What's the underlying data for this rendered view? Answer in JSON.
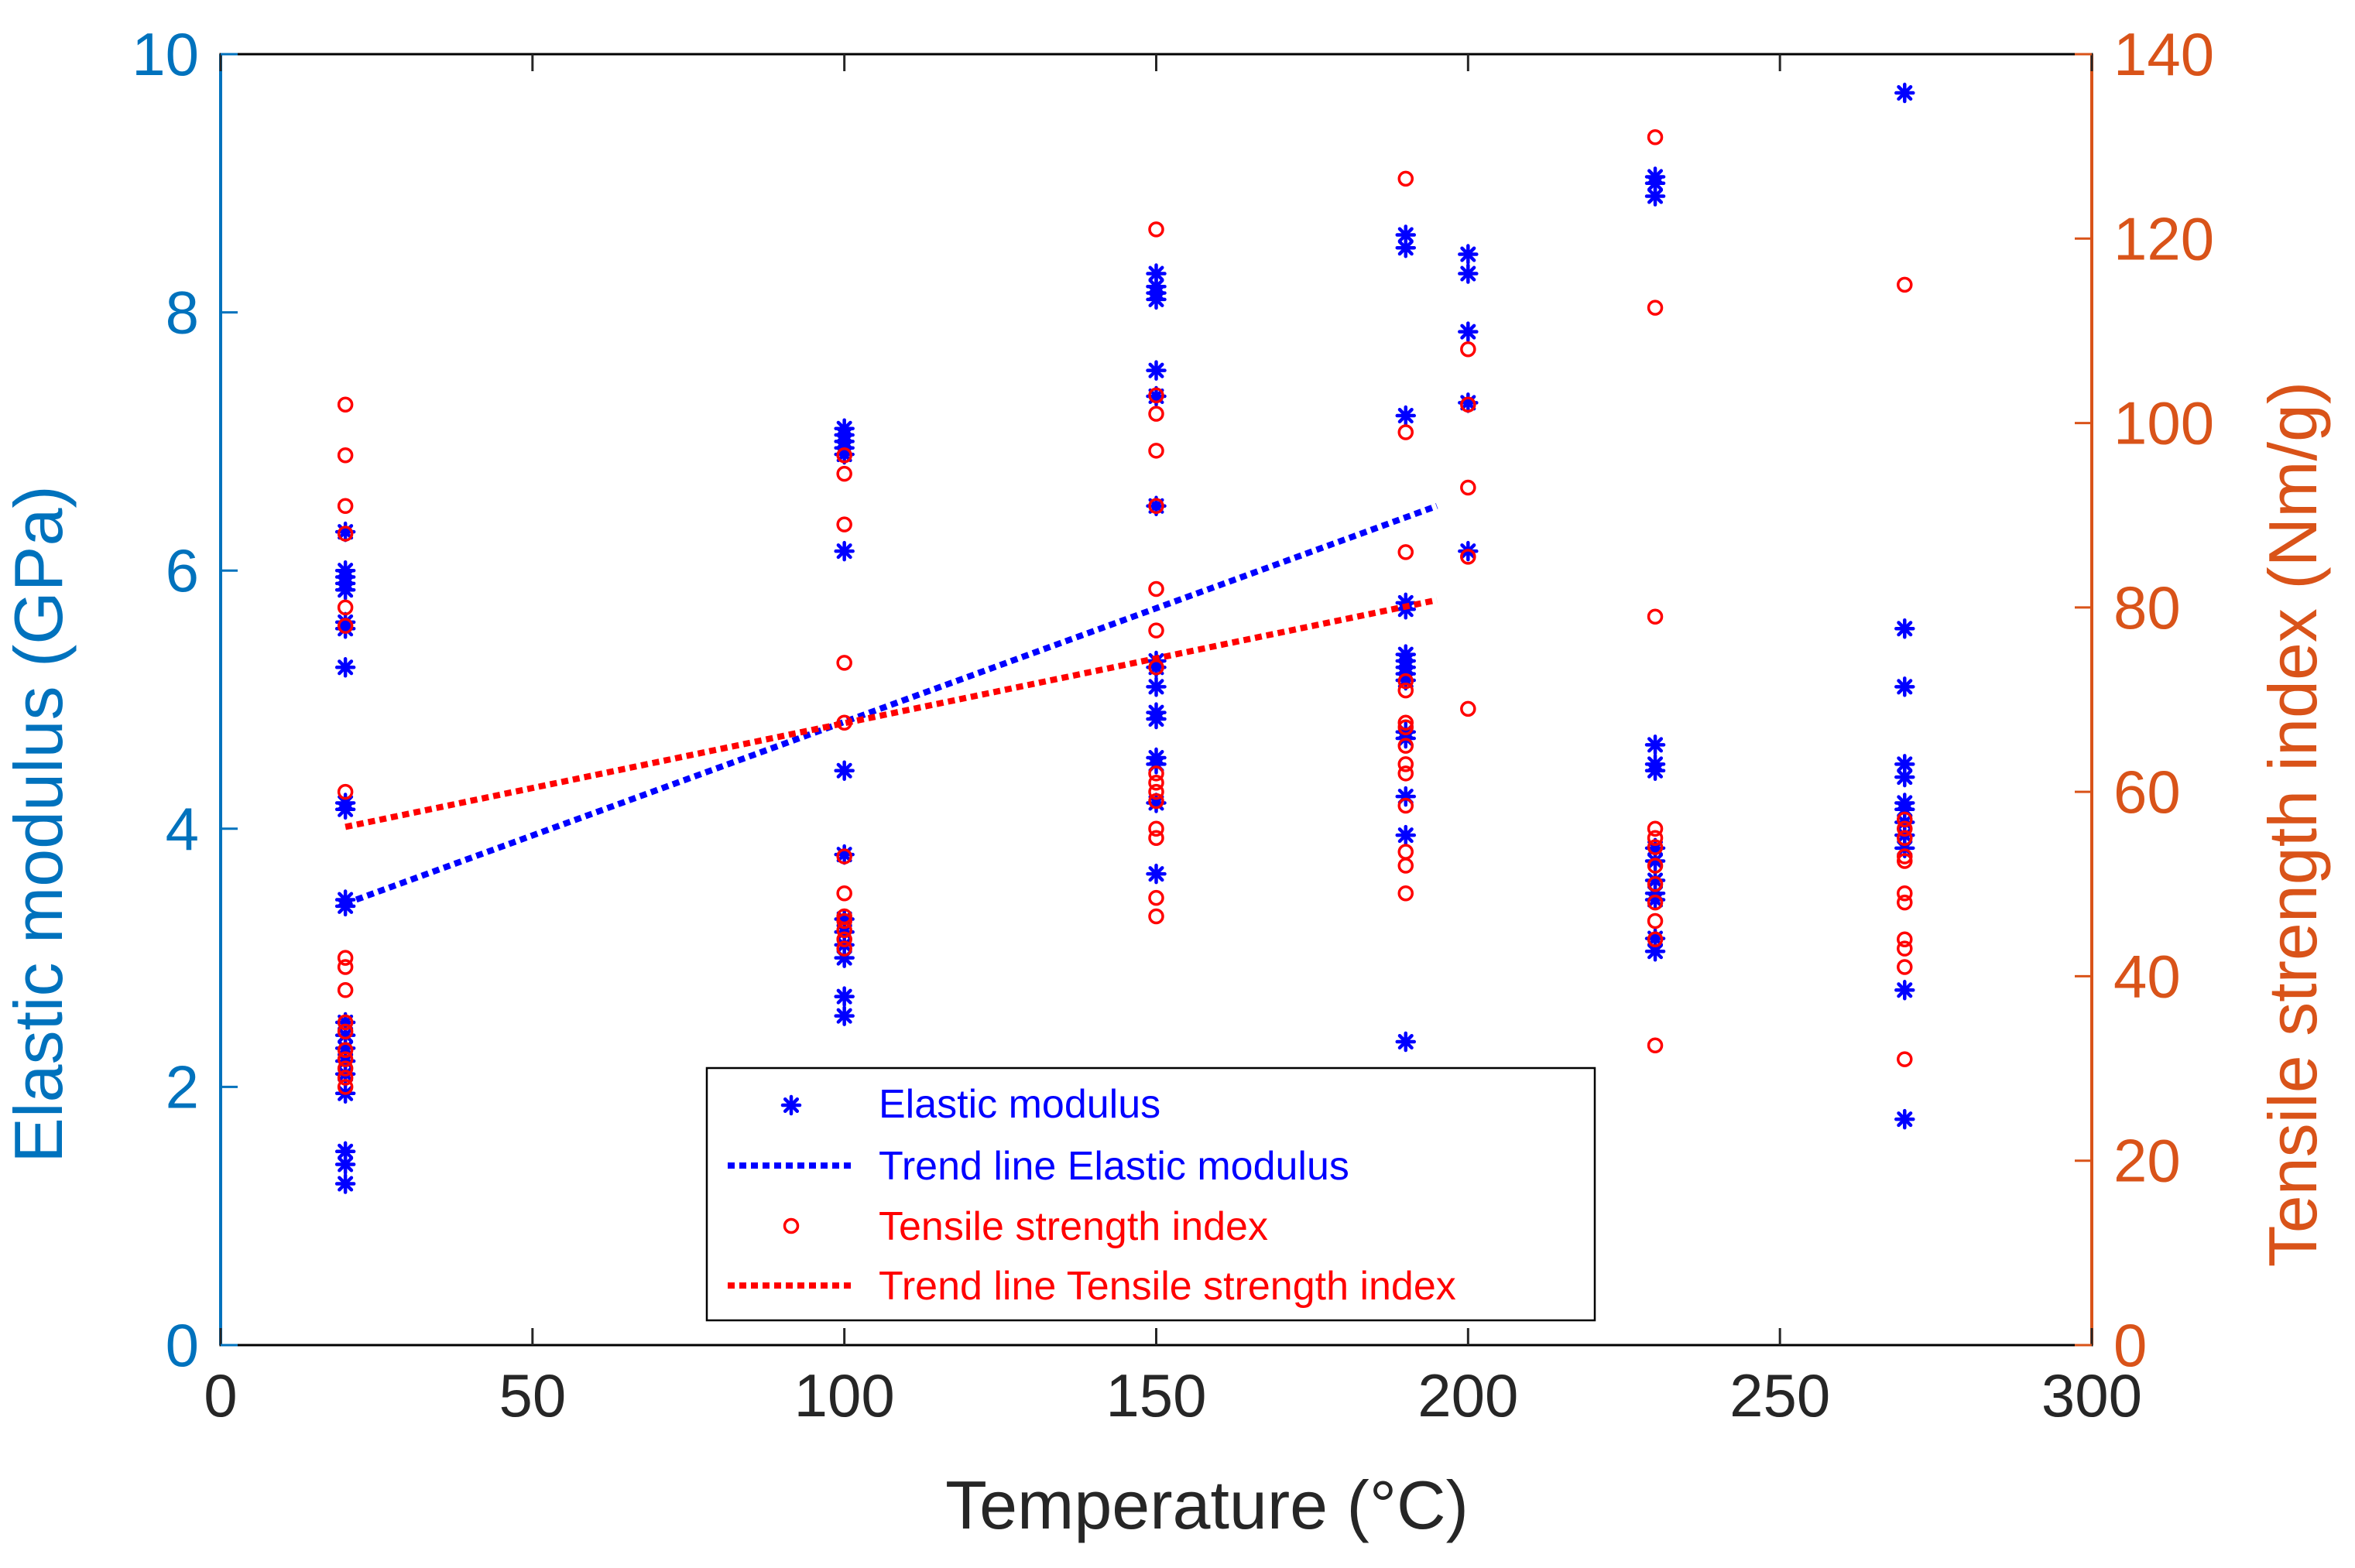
{
  "chart_data": {
    "type": "scatter",
    "title": "",
    "xlabel": "Temperature (°C)",
    "ylabel_left": "Elastic modulus (GPa)",
    "ylabel_right": "Tensile strength index (Nm/g)",
    "xlim": [
      0,
      300
    ],
    "ylim_left": [
      0,
      10
    ],
    "ylim_right": [
      0,
      140
    ],
    "x_ticks": [
      0,
      50,
      100,
      150,
      200,
      250,
      300
    ],
    "y_left_ticks": [
      0,
      2,
      4,
      6,
      8,
      10
    ],
    "y_right_ticks": [
      0,
      20,
      40,
      60,
      80,
      100,
      120,
      140
    ],
    "grid": false,
    "legend_position": "bottom-center",
    "colors": {
      "left_axis": "#0072BD",
      "right_axis": "#D95319",
      "elastic": "#0000FF",
      "tensile": "#FF0000",
      "frame": "#000000"
    },
    "series": [
      {
        "name": "Elastic modulus",
        "axis": "left",
        "marker": "star",
        "points": [
          [
            20,
            6.3
          ],
          [
            20,
            6.0
          ],
          [
            20,
            5.95
          ],
          [
            20,
            5.9
          ],
          [
            20,
            5.85
          ],
          [
            20,
            5.6
          ],
          [
            20,
            5.55
          ],
          [
            20,
            5.25
          ],
          [
            20,
            4.2
          ],
          [
            20,
            4.15
          ],
          [
            20,
            3.45
          ],
          [
            20,
            3.4
          ],
          [
            20,
            2.5
          ],
          [
            20,
            2.4
          ],
          [
            20,
            2.3
          ],
          [
            20,
            2.2
          ],
          [
            20,
            2.1
          ],
          [
            20,
            1.95
          ],
          [
            20,
            1.5
          ],
          [
            20,
            1.4
          ],
          [
            20,
            1.25
          ],
          [
            100,
            7.1
          ],
          [
            100,
            7.05
          ],
          [
            100,
            7.0
          ],
          [
            100,
            6.95
          ],
          [
            100,
            6.9
          ],
          [
            100,
            6.15
          ],
          [
            100,
            4.45
          ],
          [
            100,
            3.8
          ],
          [
            100,
            3.3
          ],
          [
            100,
            3.2
          ],
          [
            100,
            3.1
          ],
          [
            100,
            3.0
          ],
          [
            100,
            2.7
          ],
          [
            100,
            2.55
          ],
          [
            150,
            8.3
          ],
          [
            150,
            8.2
          ],
          [
            150,
            8.15
          ],
          [
            150,
            8.1
          ],
          [
            150,
            7.55
          ],
          [
            150,
            7.35
          ],
          [
            150,
            6.5
          ],
          [
            150,
            5.3
          ],
          [
            150,
            5.25
          ],
          [
            150,
            5.1
          ],
          [
            150,
            4.9
          ],
          [
            150,
            4.85
          ],
          [
            150,
            4.55
          ],
          [
            150,
            4.5
          ],
          [
            150,
            4.2
          ],
          [
            150,
            3.65
          ],
          [
            190,
            8.6
          ],
          [
            190,
            8.5
          ],
          [
            190,
            7.2
          ],
          [
            190,
            5.75
          ],
          [
            190,
            5.7
          ],
          [
            190,
            5.35
          ],
          [
            190,
            5.3
          ],
          [
            190,
            5.25
          ],
          [
            190,
            5.2
          ],
          [
            190,
            5.15
          ],
          [
            190,
            4.75
          ],
          [
            190,
            4.7
          ],
          [
            190,
            4.25
          ],
          [
            190,
            3.95
          ],
          [
            190,
            2.35
          ],
          [
            200,
            8.45
          ],
          [
            200,
            8.3
          ],
          [
            200,
            7.85
          ],
          [
            200,
            7.3
          ],
          [
            200,
            6.15
          ],
          [
            230,
            9.05
          ],
          [
            230,
            9.0
          ],
          [
            230,
            8.9
          ],
          [
            230,
            4.65
          ],
          [
            230,
            4.5
          ],
          [
            230,
            4.45
          ],
          [
            230,
            3.85
          ],
          [
            230,
            3.75
          ],
          [
            230,
            3.6
          ],
          [
            230,
            3.5
          ],
          [
            230,
            3.45
          ],
          [
            230,
            3.15
          ],
          [
            230,
            3.05
          ],
          [
            270,
            9.7
          ],
          [
            270,
            5.55
          ],
          [
            270,
            5.1
          ],
          [
            270,
            4.5
          ],
          [
            270,
            4.4
          ],
          [
            270,
            4.2
          ],
          [
            270,
            4.15
          ],
          [
            270,
            4.05
          ],
          [
            270,
            3.95
          ],
          [
            270,
            3.85
          ],
          [
            270,
            2.75
          ],
          [
            270,
            1.75
          ]
        ]
      },
      {
        "name": "Trend line Elastic modulus",
        "axis": "left",
        "style": "dotted-line",
        "points": [
          [
            20,
            3.42
          ],
          [
            195,
            6.5
          ]
        ]
      },
      {
        "name": "Tensile strength index",
        "axis": "right",
        "marker": "circle",
        "points": [
          [
            20,
            102
          ],
          [
            20,
            96.5
          ],
          [
            20,
            91
          ],
          [
            20,
            88
          ],
          [
            20,
            80
          ],
          [
            20,
            78
          ],
          [
            20,
            60
          ],
          [
            20,
            42
          ],
          [
            20,
            41
          ],
          [
            20,
            38.5
          ],
          [
            20,
            35
          ],
          [
            20,
            34
          ],
          [
            20,
            32
          ],
          [
            20,
            31
          ],
          [
            20,
            30
          ],
          [
            20,
            29
          ],
          [
            20,
            28
          ],
          [
            100,
            96.5
          ],
          [
            100,
            94.5
          ],
          [
            100,
            89
          ],
          [
            100,
            74
          ],
          [
            100,
            67.5
          ],
          [
            100,
            53
          ],
          [
            100,
            49
          ],
          [
            100,
            46.5
          ],
          [
            100,
            46
          ],
          [
            100,
            45
          ],
          [
            100,
            44
          ],
          [
            100,
            43
          ],
          [
            150,
            121
          ],
          [
            150,
            103
          ],
          [
            150,
            101
          ],
          [
            150,
            97
          ],
          [
            150,
            91
          ],
          [
            150,
            82
          ],
          [
            150,
            77.5
          ],
          [
            150,
            73.5
          ],
          [
            150,
            62
          ],
          [
            150,
            61
          ],
          [
            150,
            60
          ],
          [
            150,
            59
          ],
          [
            150,
            56
          ],
          [
            150,
            55
          ],
          [
            150,
            48.5
          ],
          [
            150,
            46.5
          ],
          [
            190,
            126.5
          ],
          [
            190,
            99
          ],
          [
            190,
            86
          ],
          [
            190,
            72
          ],
          [
            190,
            71
          ],
          [
            190,
            67.5
          ],
          [
            190,
            67
          ],
          [
            190,
            65
          ],
          [
            190,
            63
          ],
          [
            190,
            62
          ],
          [
            190,
            58.5
          ],
          [
            190,
            53.5
          ],
          [
            190,
            52
          ],
          [
            190,
            49
          ],
          [
            200,
            108
          ],
          [
            200,
            102
          ],
          [
            200,
            93
          ],
          [
            200,
            85.5
          ],
          [
            200,
            69
          ],
          [
            230,
            131
          ],
          [
            230,
            112.5
          ],
          [
            230,
            79
          ],
          [
            230,
            56
          ],
          [
            230,
            55
          ],
          [
            230,
            54
          ],
          [
            230,
            52
          ],
          [
            230,
            50
          ],
          [
            230,
            48
          ],
          [
            230,
            46
          ],
          [
            230,
            44
          ],
          [
            230,
            32.5
          ],
          [
            270,
            115
          ],
          [
            270,
            57
          ],
          [
            270,
            56
          ],
          [
            270,
            55
          ],
          [
            270,
            53
          ],
          [
            270,
            52.5
          ],
          [
            270,
            49
          ],
          [
            270,
            48
          ],
          [
            270,
            44
          ],
          [
            270,
            43
          ],
          [
            270,
            41
          ],
          [
            270,
            31
          ]
        ]
      },
      {
        "name": "Trend line Tensile strength index",
        "axis": "right",
        "style": "dotted-line",
        "points": [
          [
            20,
            56.2
          ],
          [
            195,
            80.8
          ]
        ]
      }
    ]
  }
}
